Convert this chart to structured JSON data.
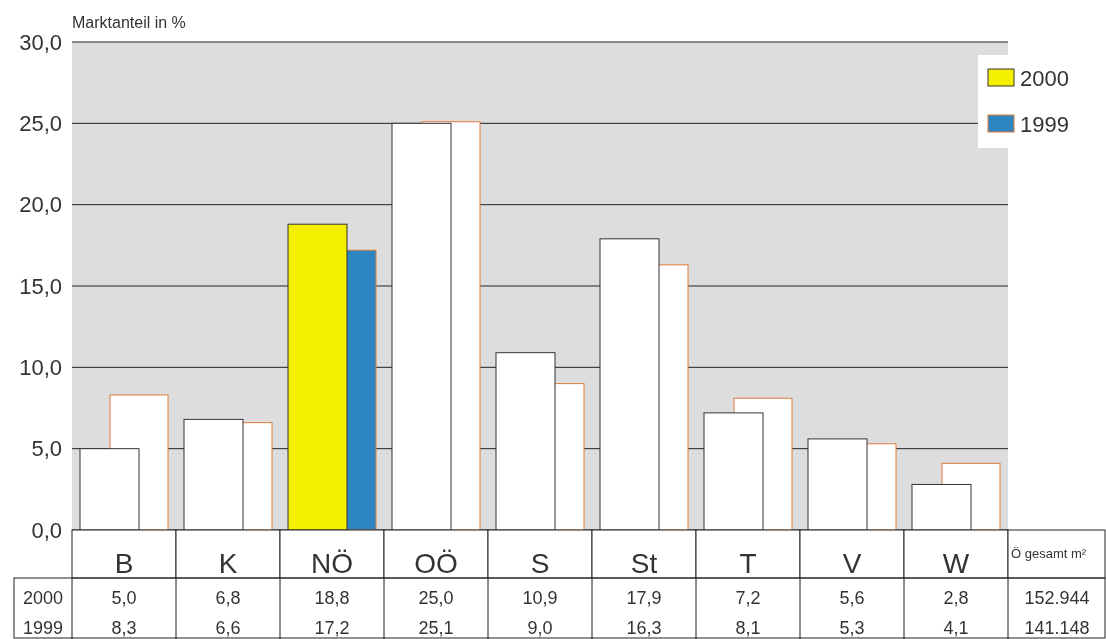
{
  "chart_data": {
    "type": "bar",
    "ylabel": "Marktanteil in %",
    "categories": [
      "B",
      "K",
      "NÖ",
      "OÖ",
      "S",
      "St",
      "T",
      "V",
      "W"
    ],
    "series": [
      {
        "name": "2000",
        "color": "#f5f000",
        "colors": [
          "#ffffff",
          "#ffffff",
          "#f5f000",
          "#ffffff",
          "#ffffff",
          "#ffffff",
          "#ffffff",
          "#ffffff",
          "#ffffff"
        ],
        "values": [
          5.0,
          6.8,
          18.8,
          25.0,
          10.9,
          17.9,
          7.2,
          5.6,
          2.8
        ],
        "value_labels": [
          "5,0",
          "6,8",
          "18,8",
          "25,0",
          "10,9",
          "17,9",
          "7,2",
          "5,6",
          "2,8"
        ]
      },
      {
        "name": "1999",
        "color": "#2e86c1",
        "colors": [
          "#ffffff",
          "#ffffff",
          "#2e86c1",
          "#ffffff",
          "#ffffff",
          "#ffffff",
          "#ffffff",
          "#ffffff",
          "#ffffff"
        ],
        "values": [
          8.3,
          6.6,
          17.2,
          25.1,
          9.0,
          16.3,
          8.1,
          5.3,
          4.1
        ],
        "value_labels": [
          "8,3",
          "6,6",
          "17,2",
          "25,1",
          "9,0",
          "16,3",
          "8,1",
          "5,3",
          "4,1"
        ]
      }
    ],
    "ylim": [
      0,
      30
    ],
    "yticks": [
      {
        "value": 0,
        "label": "0,0"
      },
      {
        "value": 5,
        "label": "5,0"
      },
      {
        "value": 10,
        "label": "10,0"
      },
      {
        "value": 15,
        "label": "15,0"
      },
      {
        "value": 20,
        "label": "20,0"
      },
      {
        "value": 25,
        "label": "25,0"
      },
      {
        "value": 30,
        "label": "30,0"
      }
    ],
    "grid": "y",
    "legend": "top right",
    "annotations": [
      "Ö gesamt m²",
      "152.944",
      "141.148"
    ]
  }
}
